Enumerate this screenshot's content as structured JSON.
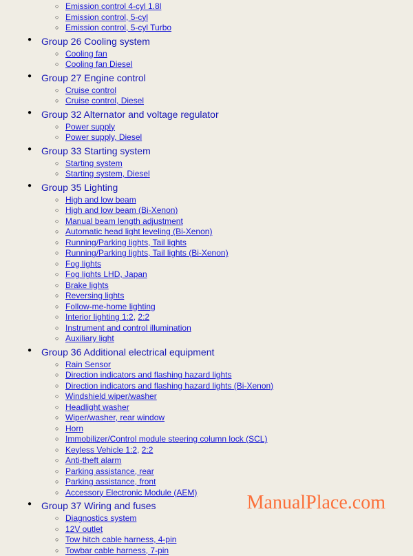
{
  "watermark": "ManualPlace.com",
  "colors": {
    "background": "#f0ede4",
    "link": "#1515d5",
    "group_title": "#1515b5",
    "watermark": "rgba(255,68,0,0.75)"
  },
  "initial_items": [
    {
      "label": "Emission control 4-cyl 1.8l"
    },
    {
      "label": "Emission control, 5-cyl"
    },
    {
      "label": "Emission control, 5-cyl Turbo"
    }
  ],
  "groups": [
    {
      "title": "Group 26 Cooling system",
      "items": [
        {
          "parts": [
            "Cooling fan"
          ]
        },
        {
          "parts": [
            "Cooling fan Diesel"
          ]
        }
      ]
    },
    {
      "title": "Group 27 Engine control",
      "items": [
        {
          "parts": [
            "Cruise control"
          ]
        },
        {
          "parts": [
            "Cruise control, Diesel"
          ]
        }
      ]
    },
    {
      "title": "Group 32 Alternator and voltage regulator",
      "items": [
        {
          "parts": [
            "Power supply"
          ]
        },
        {
          "parts": [
            "Power supply, Diesel"
          ]
        }
      ]
    },
    {
      "title": "Group 33 Starting system",
      "items": [
        {
          "parts": [
            "Starting system"
          ]
        },
        {
          "parts": [
            "Starting system, Diesel"
          ]
        }
      ]
    },
    {
      "title": "Group 35 Lighting",
      "items": [
        {
          "parts": [
            "High and low beam"
          ]
        },
        {
          "parts": [
            "High and low beam (Bi-Xenon)"
          ]
        },
        {
          "parts": [
            "Manual beam length adjustment"
          ]
        },
        {
          "parts": [
            "Automatic head light leveling (Bi-Xenon)"
          ]
        },
        {
          "parts": [
            "Running/Parking lights, Tail lights"
          ]
        },
        {
          "parts": [
            "Running/Parking lights, Tail lights (Bi-Xenon)"
          ]
        },
        {
          "parts": [
            "Fog lights"
          ]
        },
        {
          "parts": [
            "Fog lights LHD, Japan"
          ]
        },
        {
          "parts": [
            "Brake lights"
          ]
        },
        {
          "parts": [
            "Reversing lights"
          ]
        },
        {
          "parts": [
            "Follow-me-home lighting"
          ]
        },
        {
          "parts": [
            "Interior lighting 1:2",
            "2:2"
          ]
        },
        {
          "parts": [
            "Instrument and control illumination"
          ]
        },
        {
          "parts": [
            "Auxiliary light"
          ]
        }
      ]
    },
    {
      "title": "Group 36 Additional electrical equipment",
      "items": [
        {
          "parts": [
            "Rain Sensor"
          ]
        },
        {
          "parts": [
            "Direction indicators and flashing hazard lights"
          ]
        },
        {
          "parts": [
            "Direction indicators and flashing hazard lights (Bi-Xenon)"
          ]
        },
        {
          "parts": [
            "Windshield wiper/washer"
          ]
        },
        {
          "parts": [
            "Headlight washer"
          ]
        },
        {
          "parts": [
            "Wiper/washer, rear window"
          ]
        },
        {
          "parts": [
            "Horn"
          ]
        },
        {
          "parts": [
            "Immobilizer/Control module steering column lock (SCL)"
          ]
        },
        {
          "parts": [
            "Keyless Vehicle 1:2",
            "2:2"
          ]
        },
        {
          "parts": [
            "Anti-theft alarm"
          ]
        },
        {
          "parts": [
            "Parking assistance, rear"
          ]
        },
        {
          "parts": [
            "Parking assistance, front"
          ]
        },
        {
          "parts": [
            "Accessory Electronic Module (AEM)"
          ]
        }
      ]
    },
    {
      "title": "Group 37 Wiring and fuses",
      "items": [
        {
          "parts": [
            "Diagnostics system"
          ]
        },
        {
          "parts": [
            "12V outlet"
          ]
        },
        {
          "parts": [
            "Tow hitch cable harness, 4-pin"
          ]
        },
        {
          "parts": [
            "Towbar cable harness, 7-pin"
          ]
        }
      ]
    }
  ]
}
